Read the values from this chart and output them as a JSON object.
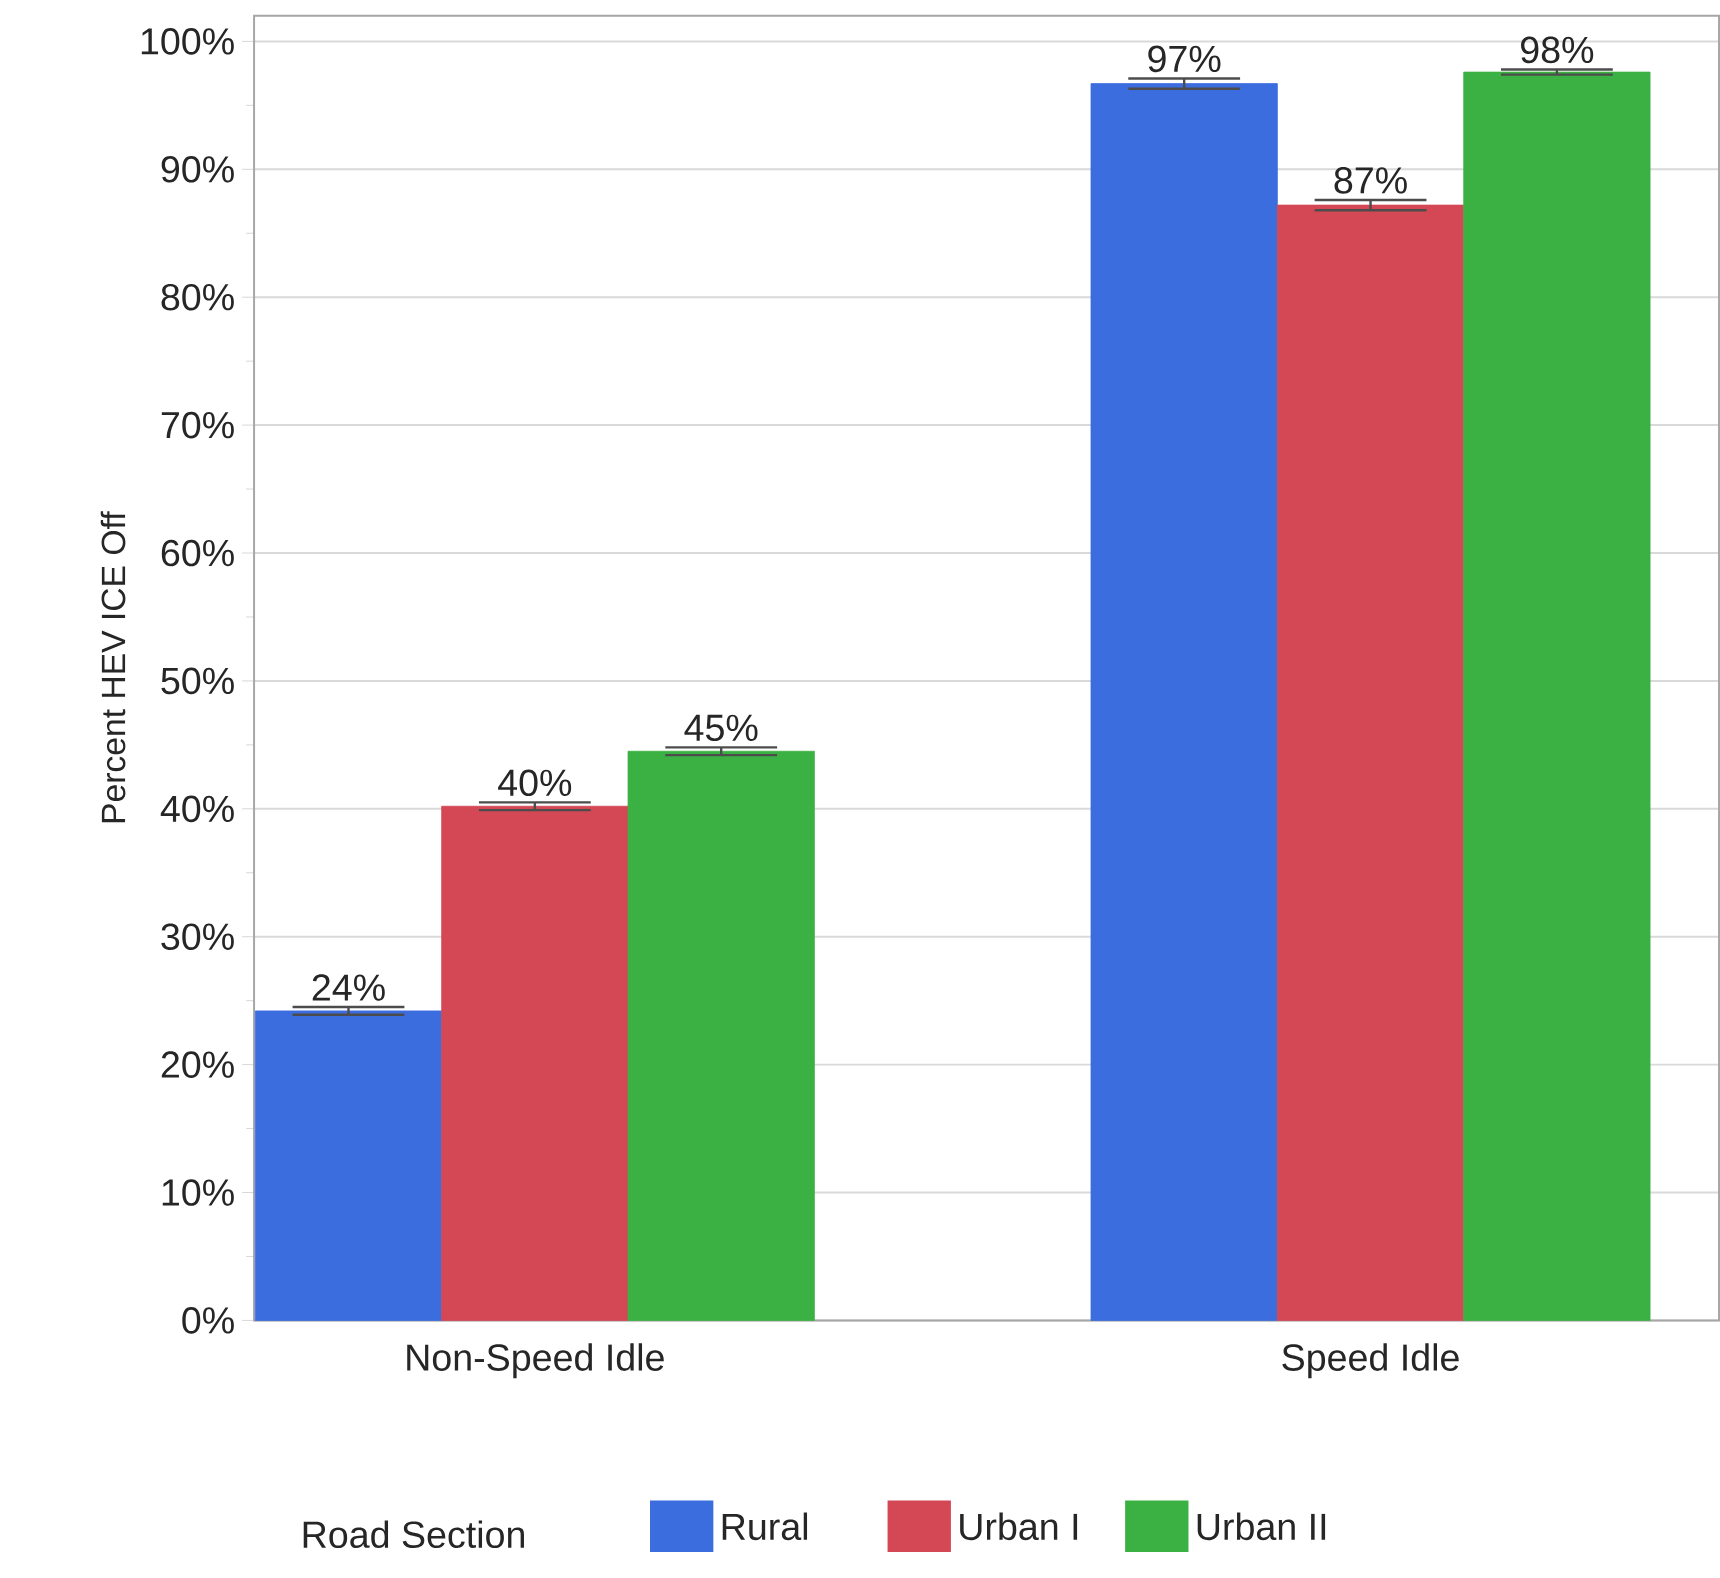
{
  "chart_data": {
    "type": "bar",
    "ylabel": "Percent HEV ICE Off",
    "legend_title": "Road Section",
    "categories": [
      "Non-Speed Idle",
      "Speed Idle"
    ],
    "series": [
      {
        "name": "Rural",
        "color": "#3c6ddf",
        "values": [
          24.2,
          96.7
        ],
        "errors": [
          0.3,
          0.4
        ],
        "value_labels": [
          "24%",
          "97%"
        ]
      },
      {
        "name": "Urban I",
        "color": "#d44755",
        "values": [
          40.2,
          87.2
        ],
        "errors": [
          0.3,
          0.4
        ],
        "value_labels": [
          "40%",
          "87%"
        ]
      },
      {
        "name": "Urban II",
        "color": "#3bb143",
        "values": [
          44.5,
          97.6
        ],
        "errors": [
          0.3,
          0.2
        ],
        "value_labels": [
          "45%",
          "98%"
        ]
      }
    ],
    "ylim": [
      0,
      102
    ],
    "yticks": [
      {
        "value": 0,
        "label": "0%"
      },
      {
        "value": 10,
        "label": "10%"
      },
      {
        "value": 20,
        "label": "20%"
      },
      {
        "value": 30,
        "label": "30%"
      },
      {
        "value": 40,
        "label": "40%"
      },
      {
        "value": 50,
        "label": "50%"
      },
      {
        "value": 60,
        "label": "60%"
      },
      {
        "value": 70,
        "label": "70%"
      },
      {
        "value": 80,
        "label": "80%"
      },
      {
        "value": 90,
        "label": "90%"
      },
      {
        "value": 100,
        "label": "100%"
      }
    ],
    "grid": "y",
    "legend": "bottom"
  }
}
